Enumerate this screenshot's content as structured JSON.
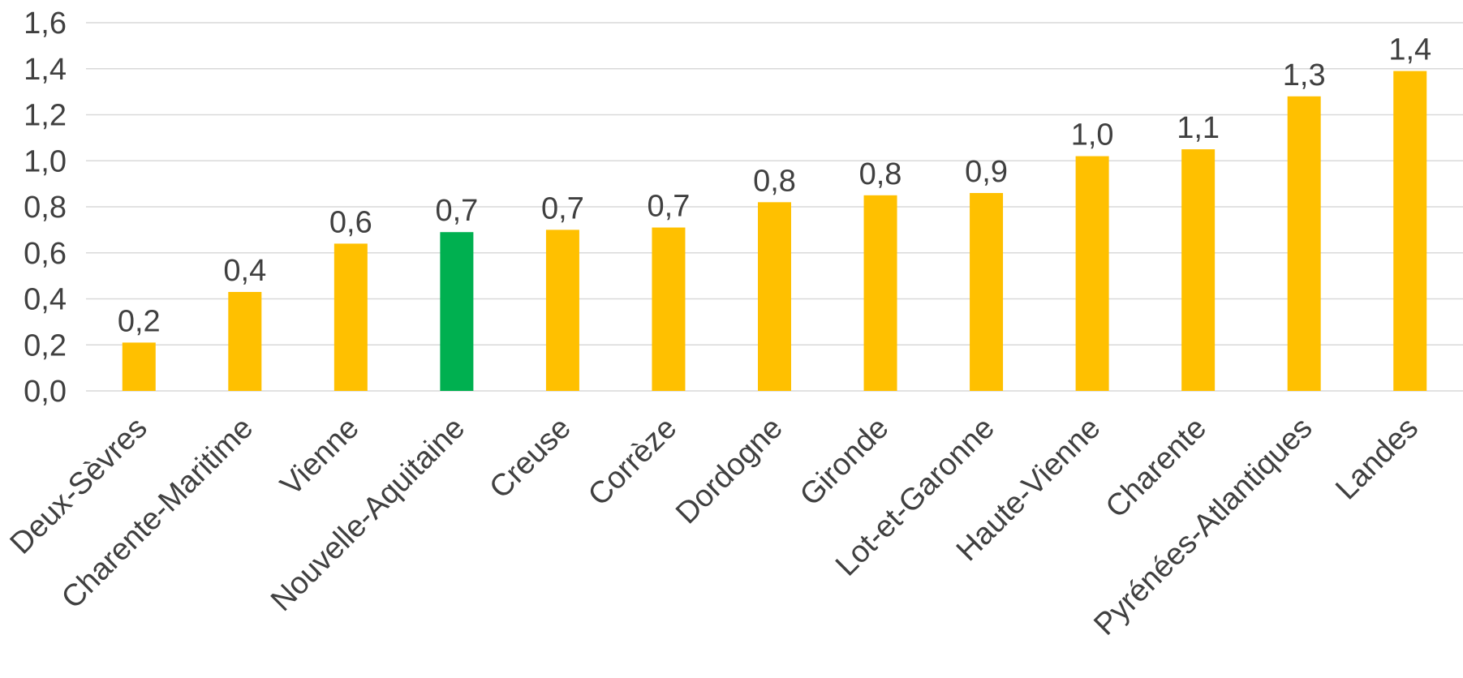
{
  "chart_data": {
    "type": "bar",
    "title": "",
    "xlabel": "",
    "ylabel": "",
    "ylim": [
      0,
      1.6
    ],
    "yticks": [
      0,
      0.2,
      0.4,
      0.6,
      0.8,
      1.0,
      1.2,
      1.4,
      1.6
    ],
    "ytick_labels": [
      "0,0",
      "0,2",
      "0,4",
      "0,6",
      "0,8",
      "1,0",
      "1,2",
      "1,4",
      "1,6"
    ],
    "grid": true,
    "legend": "none",
    "categories": [
      "Deux-Sèvres",
      "Charente-Maritime",
      "Vienne",
      "Nouvelle-Aquitaine",
      "Creuse",
      "Corrèze",
      "Dordogne",
      "Gironde",
      "Lot-et-Garonne",
      "Haute-Vienne",
      "Charente",
      "Pyrénées-Atlantiques",
      "Landes"
    ],
    "values": [
      0.21,
      0.43,
      0.64,
      0.69,
      0.7,
      0.71,
      0.82,
      0.85,
      0.86,
      1.02,
      1.05,
      1.28,
      1.39
    ],
    "data_labels": [
      "0,2",
      "0,4",
      "0,6",
      "0,7",
      "0,7",
      "0,7",
      "0,8",
      "0,8",
      "0,9",
      "1,0",
      "1,1",
      "1,3",
      "1,4"
    ],
    "colors": {
      "default": "#FFC000",
      "highlight": "#00B050",
      "highlight_category": "Nouvelle-Aquitaine"
    }
  }
}
